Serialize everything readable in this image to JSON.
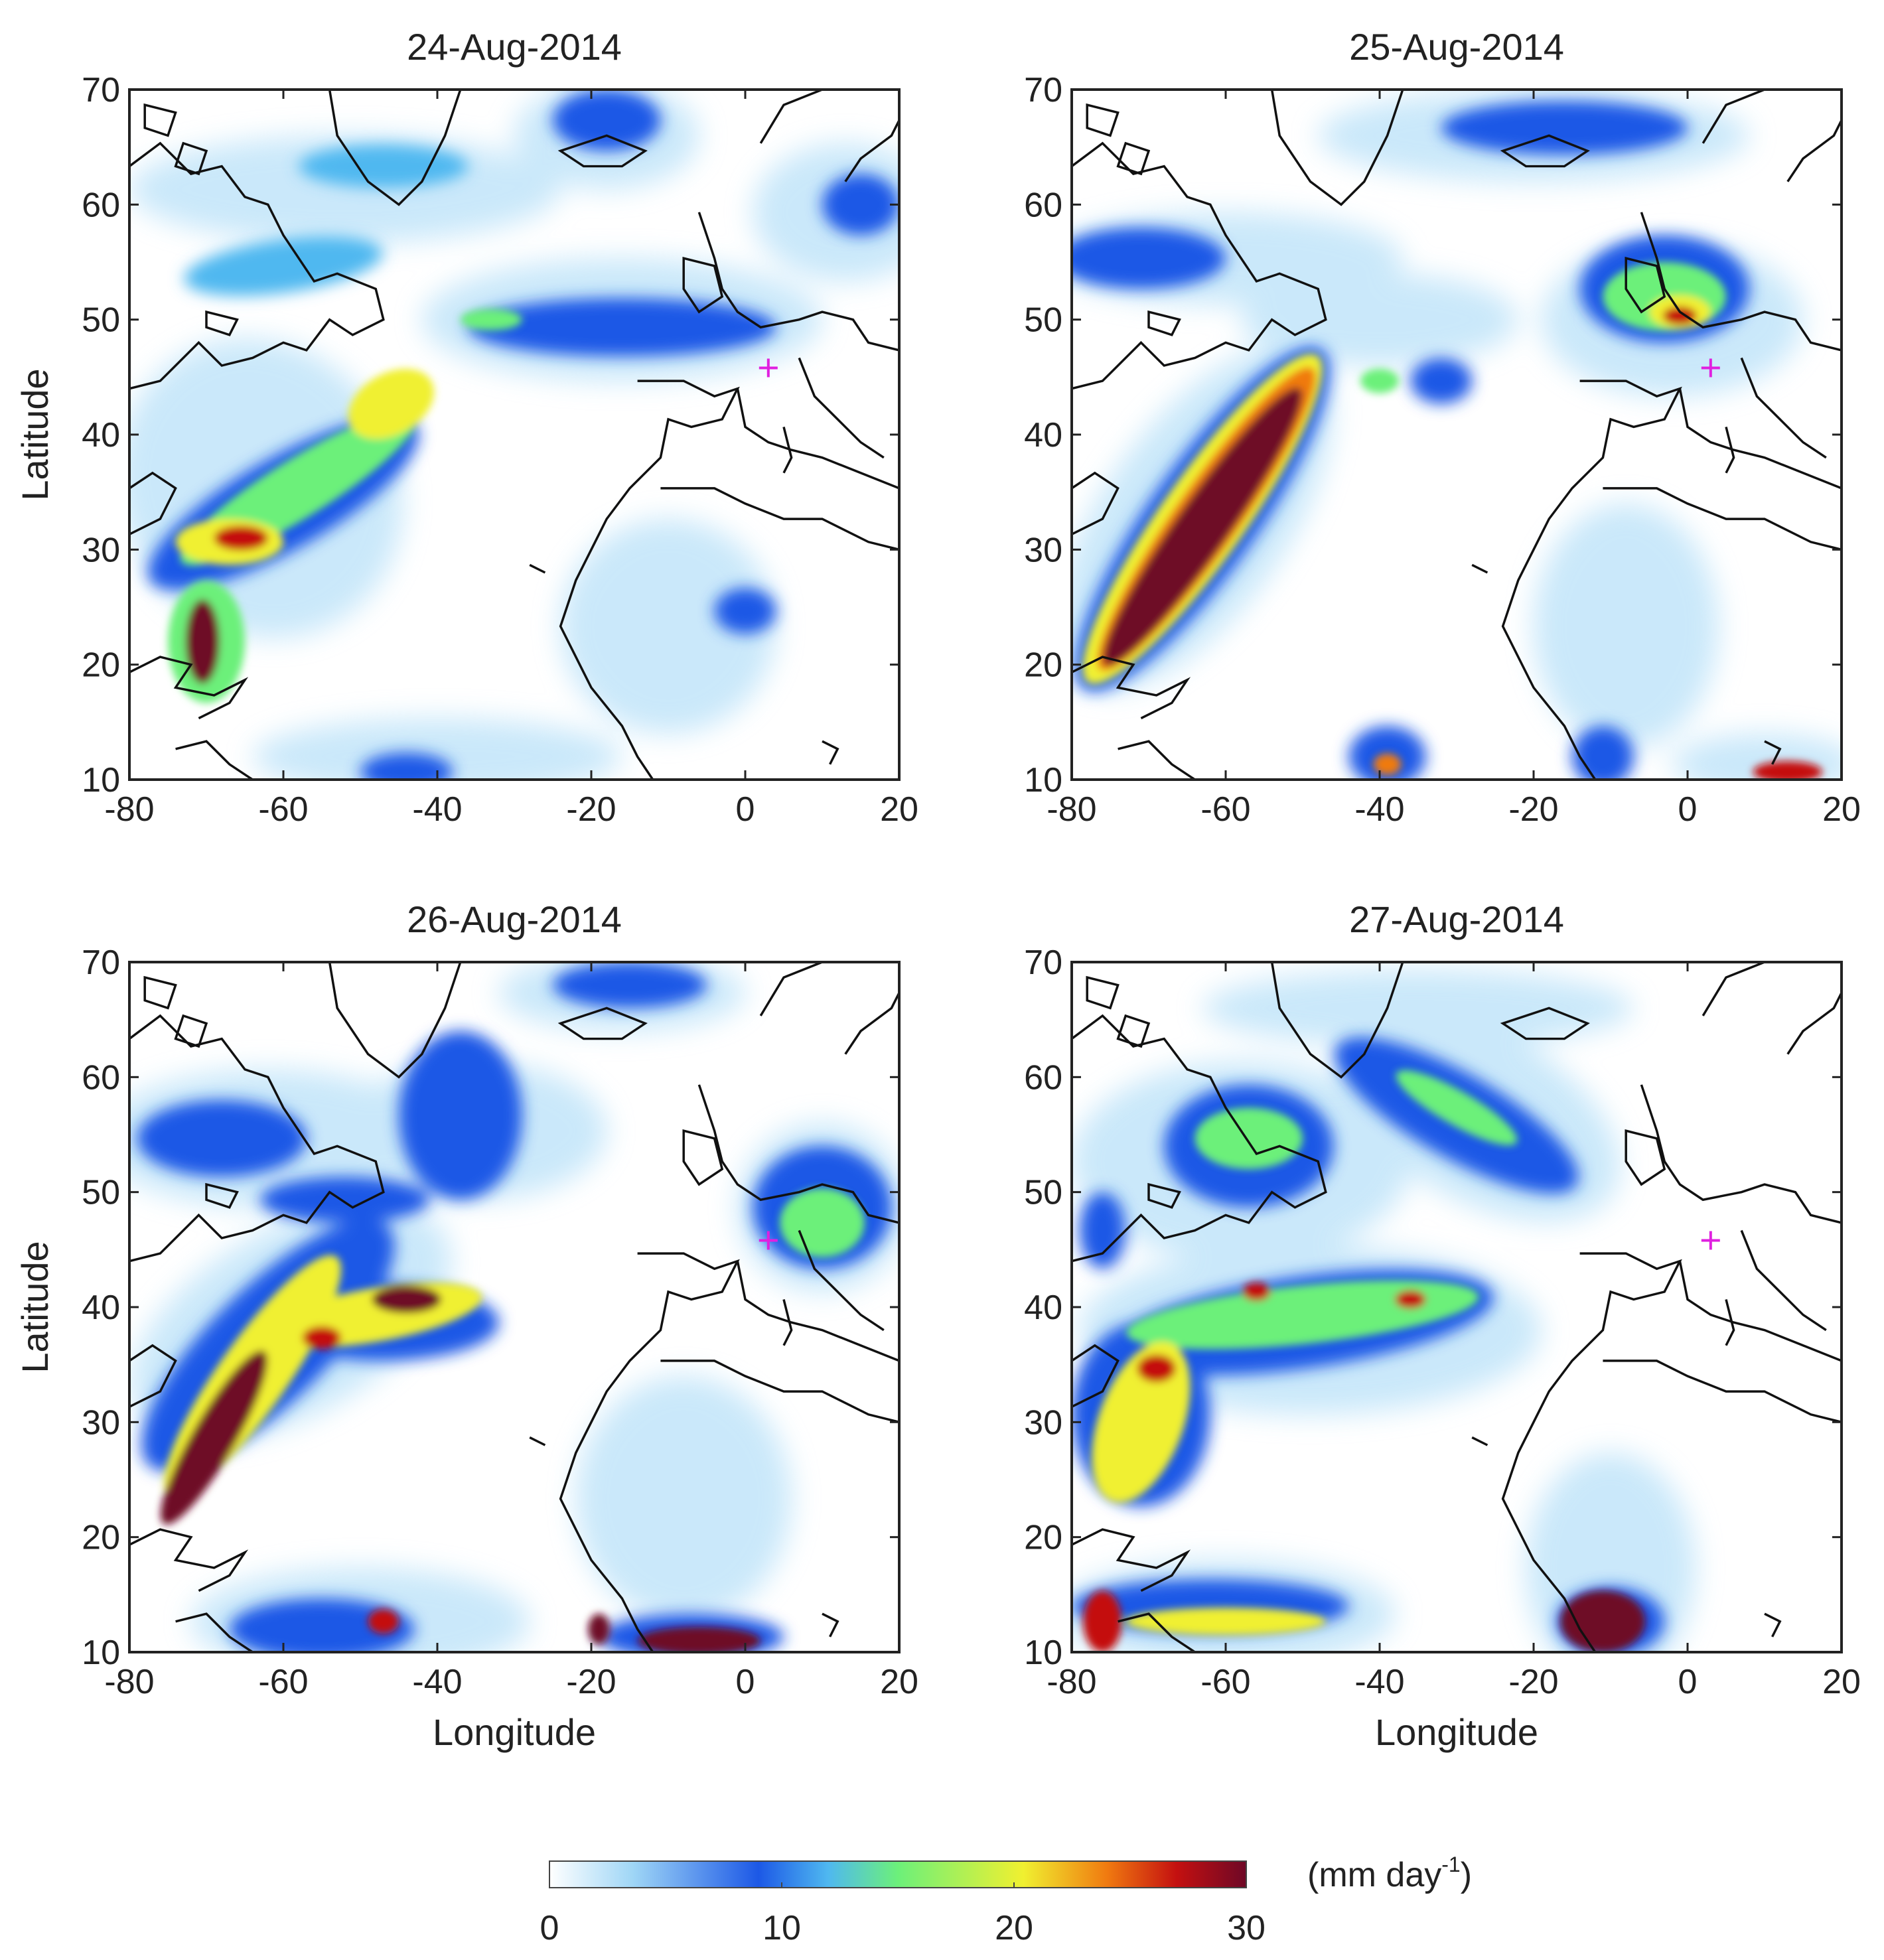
{
  "figure": {
    "panels": [
      {
        "title": "24-Aug-2014",
        "show_ylabel": true,
        "show_xlabel": false
      },
      {
        "title": "25-Aug-2014",
        "show_ylabel": false,
        "show_xlabel": false
      },
      {
        "title": "26-Aug-2014",
        "show_ylabel": true,
        "show_xlabel": true
      },
      {
        "title": "27-Aug-2014",
        "show_ylabel": false,
        "show_xlabel": true
      }
    ],
    "x_label": "Longitude",
    "y_label": "Latitude",
    "x_ticks": [
      -80,
      -60,
      -40,
      -20,
      0,
      20
    ],
    "y_ticks": [
      10,
      20,
      30,
      40,
      50,
      60,
      70
    ],
    "x_range": [
      -80,
      20
    ],
    "y_range": [
      10,
      70
    ],
    "marker": {
      "symbol": "+",
      "lon": 3,
      "lat": 45.8,
      "color": "#e020e0"
    },
    "colorbar": {
      "unit_base": "(mm day",
      "unit_sup": "-1",
      "unit_close": ")",
      "range": [
        0,
        30
      ],
      "ticks": [
        0,
        10,
        20,
        30
      ],
      "stops": [
        "#ffffff",
        "#9fd6f6",
        "#1c58e6",
        "#4fb8f0",
        "#6cf07a",
        "#f0f030",
        "#f07a10",
        "#c41010",
        "#6e0826"
      ]
    }
  }
}
